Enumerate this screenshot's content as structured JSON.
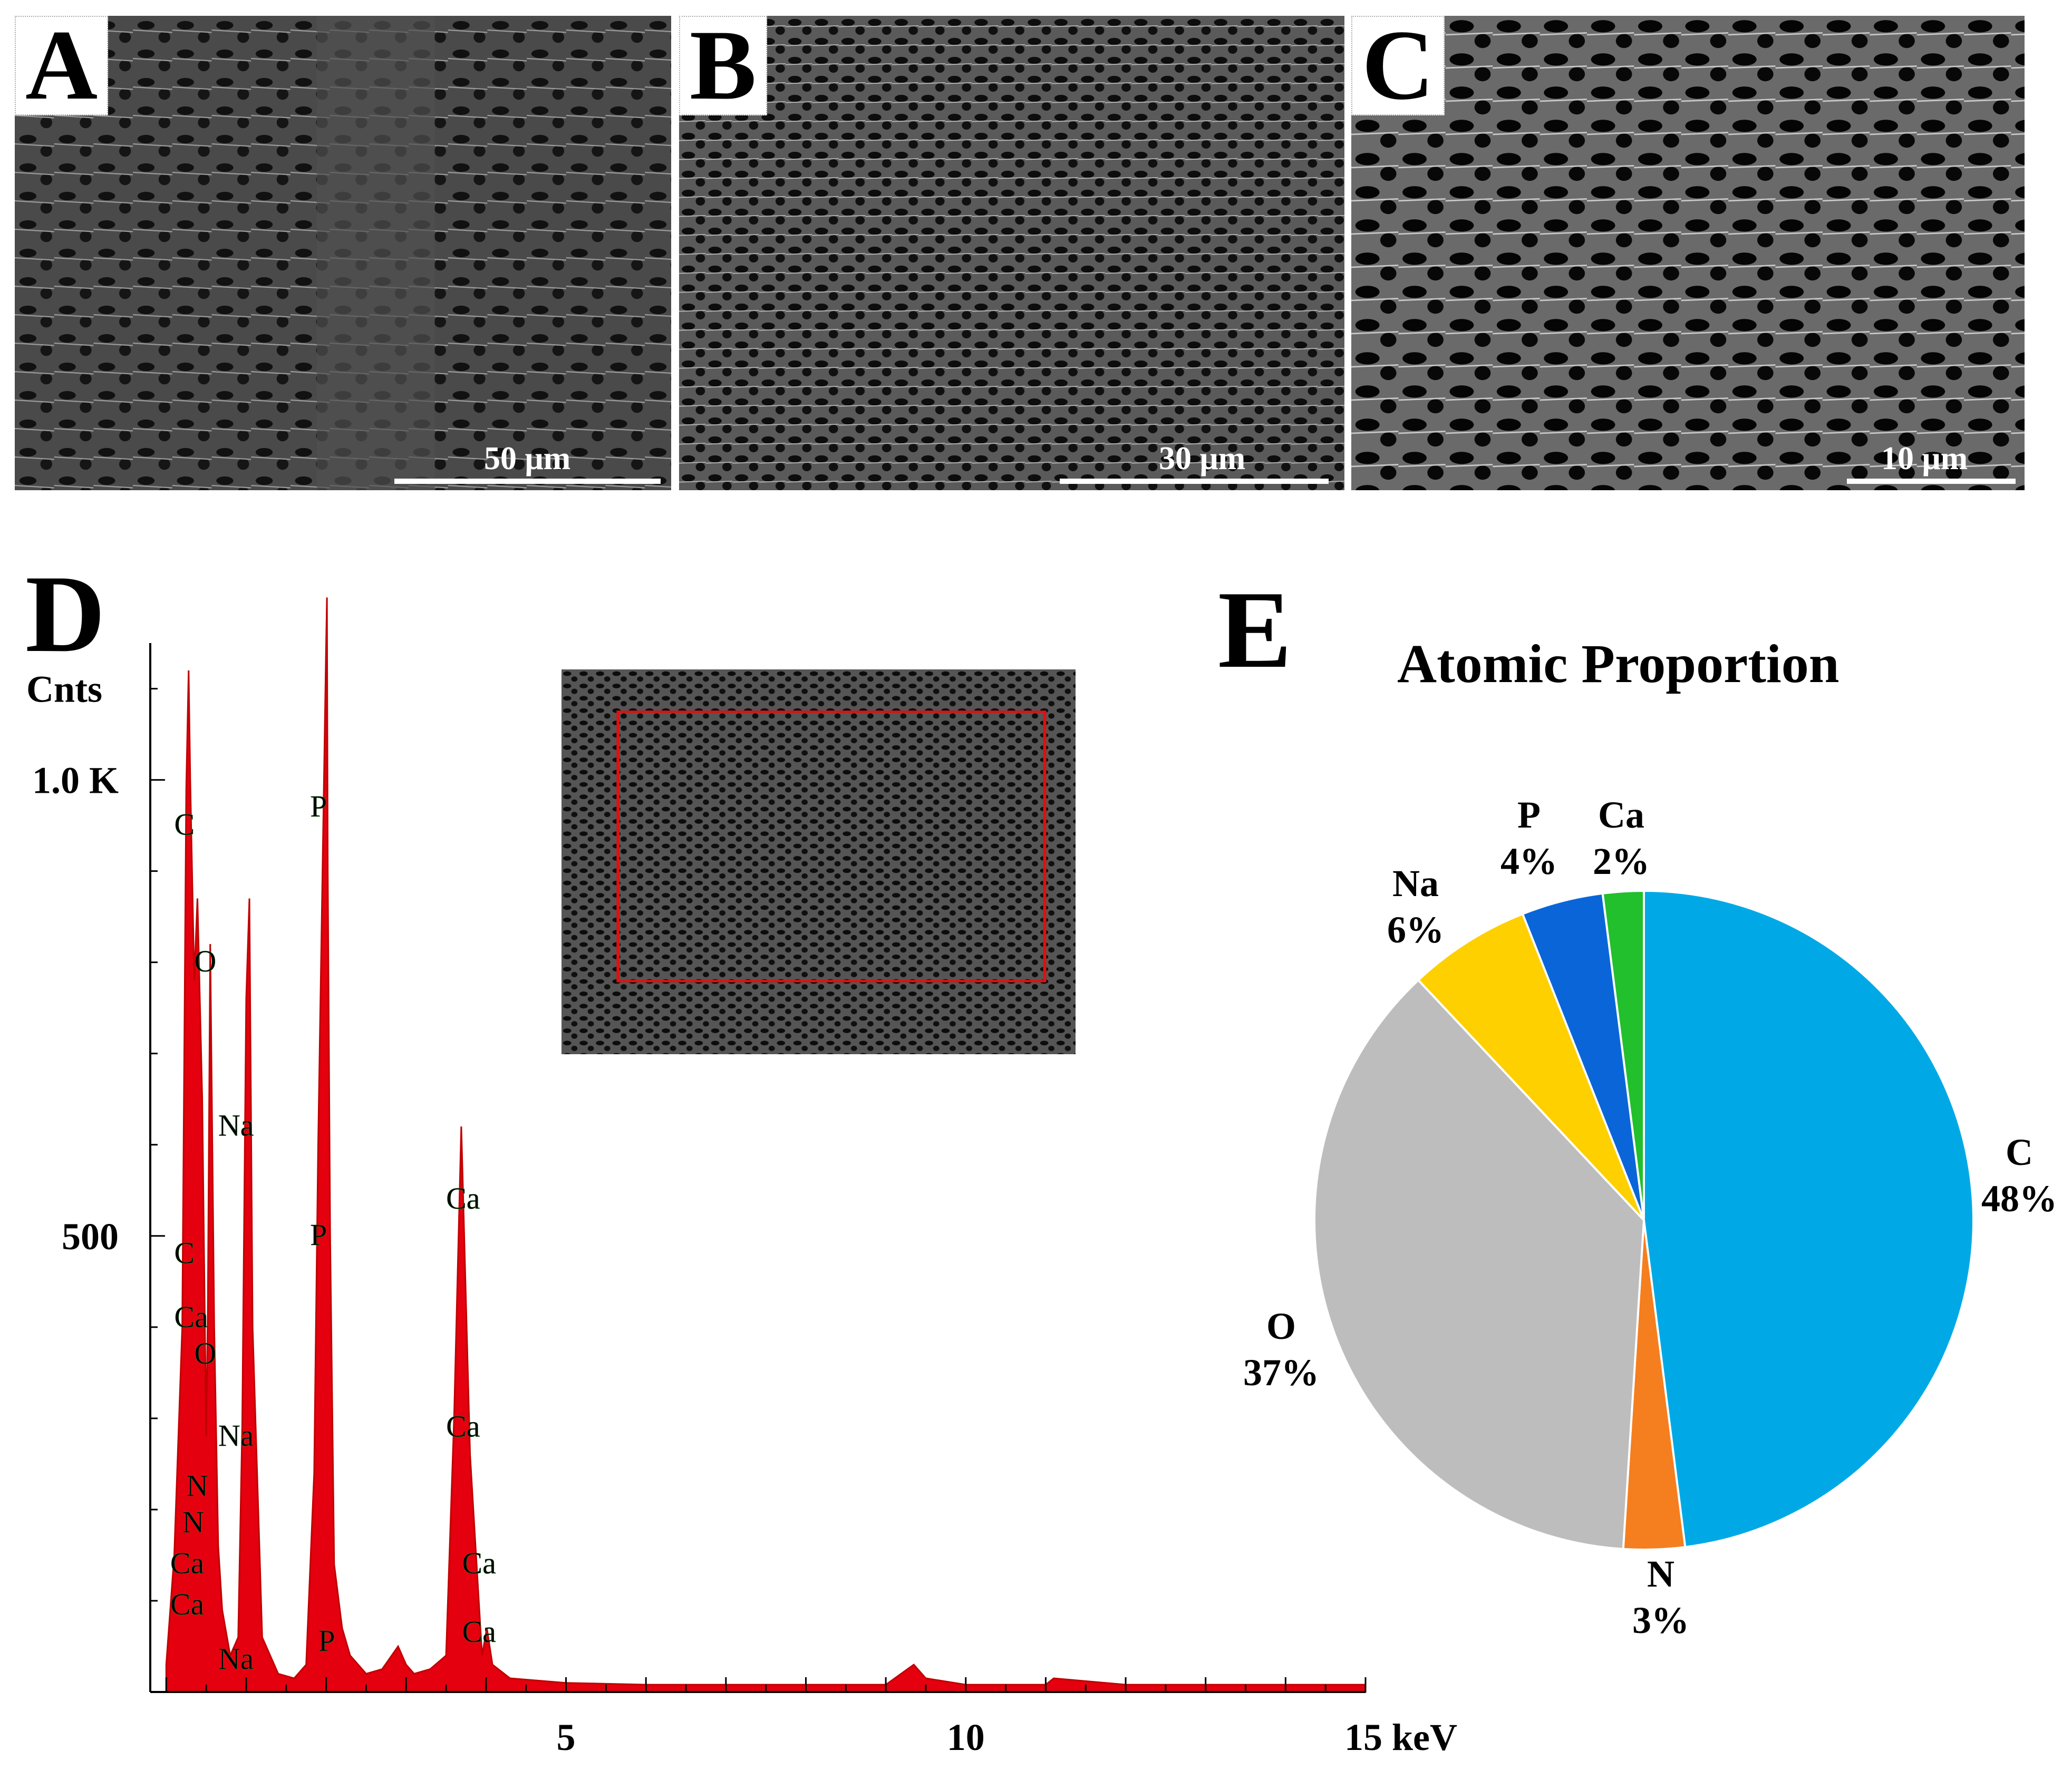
{
  "panels": [
    {
      "letter": "A",
      "scale": "50 μm"
    },
    {
      "letter": "B",
      "scale": "30 μm"
    },
    {
      "letter": "C",
      "scale": "10 μm"
    }
  ],
  "eds": {
    "letter": "D",
    "ylabel": "Cnts",
    "yticks": [
      {
        "value": 1000,
        "label": "1.0 K"
      },
      {
        "value": 500,
        "label": "500"
      }
    ],
    "xticks": [
      {
        "value": 5,
        "label": "5"
      },
      {
        "value": 10,
        "label": "10"
      },
      {
        "value": 15,
        "label": "15 keV"
      }
    ],
    "peak_labels": [
      {
        "text": "C",
        "x": 0.1,
        "y": 940
      },
      {
        "text": "O",
        "x": 0.35,
        "y": 790
      },
      {
        "text": "Na",
        "x": 0.65,
        "y": 610
      },
      {
        "text": "P",
        "x": 1.8,
        "y": 960
      },
      {
        "text": "Ca",
        "x": 3.5,
        "y": 530
      },
      {
        "text": "C",
        "x": 0.1,
        "y": 470
      },
      {
        "text": "P",
        "x": 1.8,
        "y": 490
      },
      {
        "text": "Ca",
        "x": 0.1,
        "y": 400
      },
      {
        "text": "O",
        "x": 0.35,
        "y": 360
      },
      {
        "text": "Na",
        "x": 0.65,
        "y": 270
      },
      {
        "text": "Ca",
        "x": 3.5,
        "y": 280
      },
      {
        "text": "N",
        "x": 0.25,
        "y": 215
      },
      {
        "text": "N",
        "x": 0.2,
        "y": 175
      },
      {
        "text": "Ca",
        "x": 0.05,
        "y": 130
      },
      {
        "text": "Ca",
        "x": 3.7,
        "y": 130
      },
      {
        "text": "Ca",
        "x": 0.05,
        "y": 85
      },
      {
        "text": "P",
        "x": 1.9,
        "y": 45
      },
      {
        "text": "Ca",
        "x": 3.7,
        "y": 55
      },
      {
        "text": "Na",
        "x": 0.65,
        "y": 25
      }
    ]
  },
  "chart_data": [
    {
      "type": "line",
      "xlabel": "keV",
      "ylabel": "Cnts",
      "xlim": [
        -0.2,
        15
      ],
      "ylim": [
        0,
        1150
      ],
      "series": [
        {
          "x": [
            0.0,
            0.1,
            0.2,
            0.25,
            0.28,
            0.3,
            0.35,
            0.39,
            0.45,
            0.5,
            0.52,
            0.55,
            0.6,
            0.65,
            0.7,
            0.8,
            0.9,
            0.95,
            1.0,
            1.04,
            1.08,
            1.2,
            1.4,
            1.6,
            1.75,
            1.85,
            1.9,
            2.0,
            2.01,
            2.02,
            2.05,
            2.1,
            2.2,
            2.3,
            2.5,
            2.7,
            2.9,
            3.0,
            3.1,
            3.3,
            3.5,
            3.6,
            3.69,
            3.8,
            3.95,
            4.01,
            4.08,
            4.3,
            5.0,
            6.0,
            7.0,
            8.0,
            9.0,
            9.35,
            9.5,
            10.0,
            11.0,
            11.1,
            12.0,
            13.0,
            14.0,
            15.0
          ],
          "y": [
            30,
            150,
            400,
            990,
            1120,
            1000,
            780,
            870,
            650,
            280,
            420,
            820,
            400,
            160,
            90,
            40,
            60,
            290,
            760,
            870,
            400,
            60,
            20,
            15,
            30,
            240,
            600,
            1150,
            1200,
            900,
            500,
            140,
            70,
            40,
            20,
            25,
            50,
            30,
            20,
            25,
            40,
            300,
            620,
            260,
            40,
            70,
            30,
            15,
            10,
            8,
            8,
            8,
            8,
            30,
            15,
            8,
            8,
            15,
            8,
            8,
            8,
            8
          ]
        }
      ]
    },
    {
      "type": "pie",
      "title": "Atomic Proportion",
      "categories": [
        "C",
        "N",
        "O",
        "Na",
        "P",
        "Ca"
      ],
      "values": [
        48,
        3,
        37,
        6,
        4,
        2
      ],
      "labels": [
        "48%",
        "3%",
        "37%",
        "6%",
        "4%",
        "2%"
      ],
      "colors": [
        "#00A9E6",
        "#F57E1F",
        "#BDBDBD",
        "#FED000",
        "#0A66D8",
        "#22C02C"
      ]
    }
  ],
  "pie_letter": "E"
}
